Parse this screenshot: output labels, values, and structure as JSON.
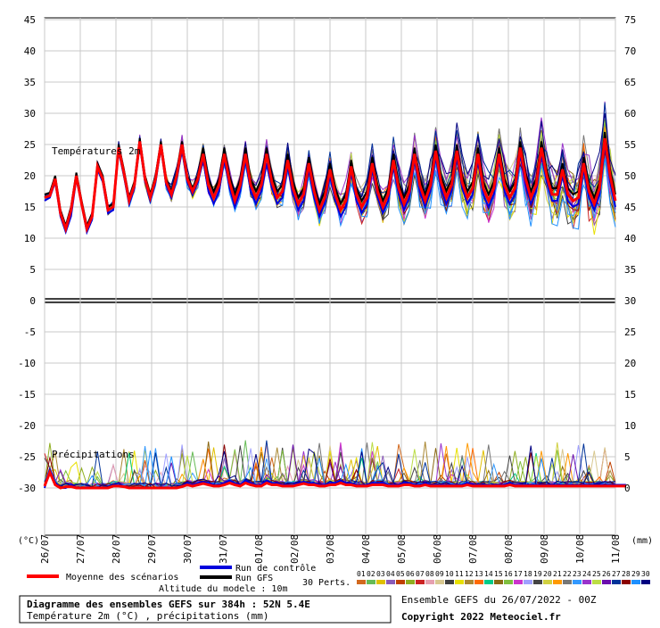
{
  "chart_data": {
    "type": "line",
    "title": "Diagramme des ensembles GEFS sur 384h : 52N 5.4E",
    "subtitle": "Température 2m (°C) , précipitations (mm)",
    "altitude": "Altitude du modele : 10m",
    "run_label": "Ensemble GEFS du 26/07/2022 - 00Z",
    "copyright": "Copyright 2022 Meteociel.fr",
    "unit_left": "(°C)",
    "unit_right": "(mm)",
    "left_axis_ticks": [
      "45",
      "40",
      "35",
      "30",
      "25",
      "20",
      "15",
      "10",
      "5",
      "0",
      "-5",
      "-10",
      "-15",
      "-20",
      "-25",
      "-30"
    ],
    "right_axis_ticks": [
      "75",
      "70",
      "65",
      "60",
      "55",
      "50",
      "45",
      "40",
      "35",
      "30",
      "25",
      "20",
      "15",
      "10",
      "5",
      "0"
    ],
    "x_tick_labels": [
      "26/07",
      "27/07",
      "28/07",
      "29/07",
      "30/07",
      "31/07",
      "01/08",
      "02/08",
      "03/08",
      "04/08",
      "05/08",
      "06/08",
      "07/08",
      "08/08",
      "09/08",
      "10/08",
      "11/08"
    ],
    "temperature_label": "Températures 2m",
    "precip_label": "Précipitations",
    "temperature_range": [
      5,
      45
    ],
    "precip_range_mm": [
      0,
      75
    ],
    "legend": {
      "mean": "Moyenne des scénarios",
      "control": "Run de contrôle",
      "gfs": "Run GFS",
      "perts": "30 Perts.",
      "member_numbers": [
        "01",
        "02",
        "03",
        "04",
        "05",
        "06",
        "07",
        "08",
        "09",
        "10",
        "11",
        "12",
        "13",
        "14",
        "15",
        "16",
        "17",
        "18",
        "19",
        "20",
        "21",
        "22",
        "23",
        "24",
        "25",
        "26",
        "27",
        "28",
        "29",
        "30"
      ],
      "member_colors": [
        "#d2691e",
        "#66bb55",
        "#e0c000",
        "#8a5ab8",
        "#c04000",
        "#8fae20",
        "#cc2222",
        "#e6a0b0",
        "#d8c890",
        "#404040",
        "#e8e000",
        "#aa8833",
        "#ff6a00",
        "#00cc88",
        "#8b6914",
        "#7fbf3f",
        "#cc33cc",
        "#a0a0ff",
        "#444444",
        "#d0d040",
        "#ff9900",
        "#777777",
        "#3399ff",
        "#9933cc",
        "#bbdd44",
        "#6a0dad",
        "#003399",
        "#8b0000",
        "#1e90ff",
        "#000080"
      ]
    },
    "series_styles": {
      "mean_color": "#ff0000",
      "control_color": "#0000dd",
      "gfs_color": "#000000"
    },
    "mean_temperature": [
      16.5,
      16.8,
      19.5,
      14.0,
      11.5,
      14.5,
      20.0,
      15.5,
      11.5,
      13.5,
      21.5,
      19.5,
      14.5,
      15.0,
      24.5,
      20.5,
      16.0,
      18.5,
      25.5,
      19.5,
      16.5,
      19.5,
      25.0,
      19.0,
      17.0,
      20.0,
      25.0,
      19.5,
      17.5,
      19.5,
      23.5,
      18.5,
      16.5,
      18.5,
      23.5,
      19.0,
      16.0,
      18.5,
      23.5,
      18.5,
      16.5,
      18.5,
      23.5,
      19.0,
      16.5,
      17.5,
      22.5,
      18.0,
      15.5,
      17.0,
      22.0,
      17.5,
      14.5,
      16.5,
      21.0,
      17.0,
      14.5,
      16.0,
      21.5,
      17.0,
      15.0,
      16.5,
      22.0,
      17.5,
      15.0,
      17.0,
      22.5,
      18.0,
      15.5,
      17.5,
      23.5,
      18.5,
      16.0,
      18.5,
      24.0,
      19.0,
      16.5,
      18.5,
      24.0,
      19.0,
      16.5,
      18.0,
      23.5,
      18.0,
      16.0,
      18.0,
      23.5,
      18.5,
      16.5,
      18.0,
      24.5,
      19.5,
      16.5,
      18.5,
      24.5,
      20.0,
      17.0,
      17.0,
      21.0,
      17.0,
      16.0,
      16.5,
      22.0,
      17.5,
      15.5,
      18.0,
      26.0,
      20.0,
      16.0
    ],
    "mean_precip_mm": [
      0.3,
      2.5,
      0.5,
      0.0,
      0.2,
      0.2,
      0.0,
      0.0,
      0.0,
      0.0,
      0.0,
      0.0,
      0.0,
      0.3,
      0.3,
      0.2,
      0.0,
      0.0,
      0.0,
      0.0,
      0.0,
      0.0,
      0.0,
      0.0,
      0.0,
      0.0,
      0.2,
      0.5,
      0.3,
      0.5,
      0.7,
      0.5,
      0.3,
      0.3,
      0.5,
      0.8,
      0.5,
      0.3,
      0.8,
      0.5,
      0.3,
      0.3,
      0.8,
      0.5,
      0.5,
      0.3,
      0.3,
      0.3,
      0.5,
      0.7,
      0.5,
      0.5,
      0.3,
      0.3,
      0.5,
      0.5,
      0.8,
      0.5,
      0.5,
      0.3,
      0.3,
      0.3,
      0.5,
      0.5,
      0.5,
      0.3,
      0.3,
      0.3,
      0.5,
      0.5,
      0.3,
      0.3,
      0.5,
      0.3,
      0.3,
      0.3,
      0.3,
      0.3,
      0.3,
      0.3,
      0.5,
      0.3,
      0.3,
      0.3,
      0.3,
      0.3,
      0.3,
      0.3,
      0.5,
      0.3,
      0.3,
      0.3,
      0.3,
      0.3,
      0.3,
      0.3,
      0.3,
      0.3,
      0.3,
      0.3,
      0.3,
      0.3,
      0.3,
      0.3,
      0.3,
      0.3,
      0.3,
      0.3,
      0.3,
      0.3,
      0.3
    ],
    "control_temperature": [
      16.0,
      16.5,
      19.0,
      13.5,
      11.0,
      13.5,
      19.5,
      15.5,
      11.0,
      13.0,
      21.0,
      19.0,
      14.0,
      14.5,
      24.0,
      20.0,
      15.5,
      18.0,
      25.0,
      19.0,
      16.0,
      19.0,
      24.5,
      18.5,
      16.5,
      19.5,
      24.0,
      19.0,
      17.0,
      19.0,
      22.5,
      17.5,
      15.5,
      17.5,
      22.5,
      18.0,
      15.0,
      17.5,
      22.5,
      17.5,
      15.5,
      17.5,
      22.0,
      18.0,
      15.5,
      16.5,
      21.5,
      17.0,
      14.5,
      16.0,
      21.0,
      16.5,
      13.5,
      15.5,
      20.0,
      16.0,
      13.5,
      15.0,
      20.5,
      16.0,
      14.0,
      15.5,
      21.0,
      16.5,
      14.0,
      16.0,
      21.5,
      17.0,
      14.5,
      16.5,
      22.5,
      17.5,
      15.0,
      17.5,
      23.0,
      18.0,
      15.5,
      17.5,
      23.0,
      18.0,
      15.5,
      17.0,
      22.5,
      17.0,
      15.0,
      17.0,
      22.5,
      17.5,
      15.5,
      17.0,
      23.5,
      18.5,
      15.5,
      17.5,
      23.5,
      19.0,
      16.0,
      16.0,
      20.0,
      16.0,
      15.0,
      15.5,
      21.0,
      16.5,
      14.5,
      17.0,
      25.0,
      19.0,
      15.0
    ],
    "gfs_temperature": [
      17.0,
      17.3,
      20.0,
      14.5,
      12.0,
      15.0,
      20.5,
      16.0,
      12.0,
      14.0,
      22.0,
      20.0,
      15.0,
      15.5,
      25.0,
      21.0,
      16.5,
      19.0,
      26.0,
      20.0,
      17.0,
      20.0,
      25.5,
      19.5,
      17.5,
      20.5,
      25.5,
      20.0,
      18.0,
      20.0,
      24.5,
      19.5,
      17.5,
      19.5,
      24.5,
      20.0,
      17.0,
      19.5,
      24.5,
      19.5,
      17.5,
      19.5,
      24.5,
      20.0,
      17.5,
      18.5,
      23.5,
      19.0,
      16.5,
      18.0,
      23.0,
      18.5,
      15.5,
      17.5,
      22.0,
      18.0,
      15.5,
      17.0,
      22.5,
      18.0,
      16.0,
      17.5,
      23.0,
      18.5,
      16.0,
      18.0,
      23.5,
      19.0,
      16.5,
      18.5,
      24.5,
      19.5,
      17.0,
      19.5,
      25.0,
      20.0,
      17.5,
      19.5,
      25.0,
      20.0,
      17.5,
      19.0,
      24.5,
      19.0,
      17.0,
      19.0,
      24.5,
      19.5,
      17.5,
      19.0,
      25.5,
      20.5,
      17.5,
      19.5,
      25.5,
      21.0,
      18.0,
      18.0,
      22.0,
      18.0,
      17.0,
      17.5,
      23.0,
      18.5,
      16.5,
      19.0,
      27.0,
      21.0,
      17.0
    ],
    "control_precip_mm": [
      0.0,
      3.0,
      0.8,
      0.0,
      0.0,
      0.5,
      0.0,
      0.0,
      0.0,
      0.0,
      0.0,
      0.0,
      0.0,
      0.5,
      0.5,
      0.3,
      0.0,
      0.0,
      0.0,
      0.0,
      0.0,
      0.0,
      0.0,
      0.0,
      0.0,
      0.0,
      0.3,
      0.8,
      0.5,
      0.8,
      1.0,
      0.8,
      0.5,
      0.5,
      0.8,
      1.2,
      0.8,
      0.5,
      1.2,
      0.8,
      0.5,
      0.5,
      1.2,
      0.8,
      0.8,
      0.5,
      0.5,
      0.5,
      0.8,
      1.0,
      0.8,
      0.8,
      0.5,
      0.5,
      0.8,
      0.8,
      1.2,
      0.8,
      0.8,
      0.5,
      0.5,
      0.5,
      0.8,
      0.8,
      0.8,
      0.5,
      0.5,
      0.5,
      0.8,
      0.8,
      0.5,
      0.5,
      0.8,
      0.5,
      0.5,
      0.5,
      0.5,
      0.5,
      0.5,
      0.5,
      0.8,
      0.5,
      0.5,
      0.5,
      0.5,
      0.5,
      0.5,
      0.5,
      0.8,
      0.5,
      0.5,
      0.5,
      0.5,
      0.5,
      0.5,
      0.5,
      0.5,
      0.5,
      0.5,
      0.5,
      0.5,
      0.5,
      0.5,
      0.5,
      0.5,
      0.5,
      0.5,
      0.5,
      0.5,
      0.5,
      0.5
    ]
  }
}
